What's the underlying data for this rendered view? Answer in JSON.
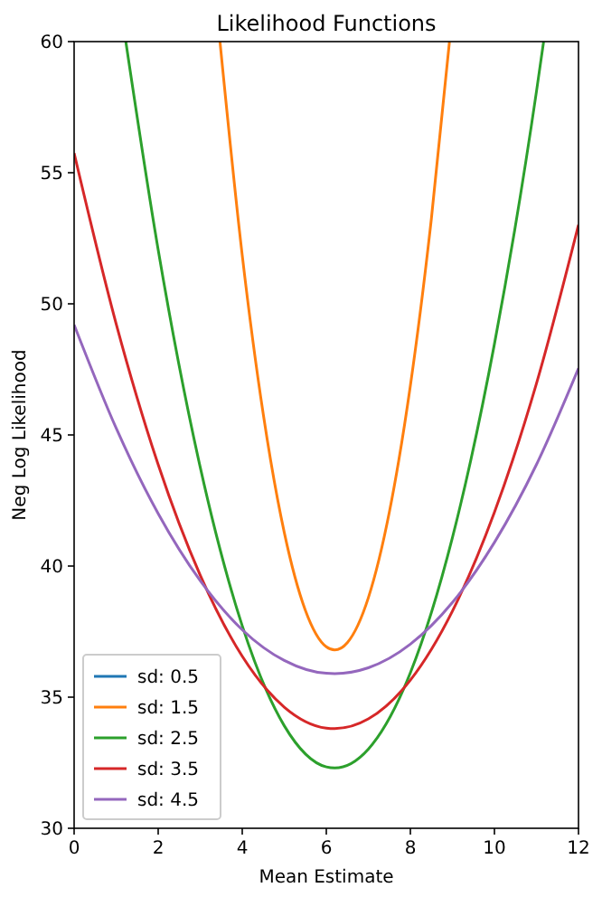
{
  "chart_data": {
    "type": "line",
    "title": "Likelihood Functions",
    "xlabel": "Mean Estimate",
    "ylabel": "Neg Log Likelihood",
    "xlim": [
      0,
      12
    ],
    "xticks": [
      0,
      2,
      4,
      6,
      8,
      10,
      12
    ],
    "ylim": [
      30,
      60
    ],
    "yticks": [
      30,
      35,
      40,
      45,
      50,
      55,
      60
    ],
    "grid": false,
    "legend": "bottom left",
    "marker": "none",
    "line_style": "solid",
    "series": [
      {
        "name": "sd: 0.5",
        "color": "#1f77b4"
      },
      {
        "name": "sd: 1.5",
        "color": "#ff7f0e",
        "x": [
          3.47,
          4,
          4.5,
          5,
          5.5,
          6,
          6.2,
          6.5,
          7,
          7.5,
          8,
          8.5,
          8.93
        ],
        "values": [
          60,
          51.85,
          45.79,
          41.28,
          38.32,
          36.92,
          36.8,
          37.08,
          38.79,
          42.06,
          46.88,
          53.25,
          60
        ]
      },
      {
        "name": "sd: 2.5",
        "color": "#2ca02c",
        "x": [
          1.23,
          2,
          3,
          4,
          5,
          6,
          6.2,
          7,
          8,
          9,
          10,
          11,
          11.17
        ],
        "values": [
          60,
          52.06,
          43.77,
          37.72,
          33.91,
          32.34,
          32.3,
          33.02,
          35.93,
          41.08,
          48.47,
          58.1,
          60
        ]
      },
      {
        "name": "sd: 3.5",
        "color": "#d62728",
        "x": [
          0,
          1,
          2,
          3,
          4,
          5,
          6,
          6.2,
          7,
          8,
          9,
          10,
          11,
          12
        ],
        "values": [
          55.75,
          49.24,
          43.87,
          39.65,
          36.56,
          34.62,
          33.82,
          33.8,
          34.17,
          35.65,
          38.28,
          42.05,
          46.96,
          53.01
        ]
      },
      {
        "name": "sd: 4.5",
        "color": "#9467bd",
        "x": [
          0,
          1,
          2,
          3,
          4,
          5,
          6,
          6.2,
          7,
          8,
          9,
          10,
          11,
          12
        ],
        "values": [
          49.2,
          45.26,
          42,
          39.44,
          37.57,
          36.4,
          35.91,
          35.9,
          36.12,
          37.02,
          38.61,
          40.9,
          43.87,
          47.54
        ]
      }
    ]
  }
}
